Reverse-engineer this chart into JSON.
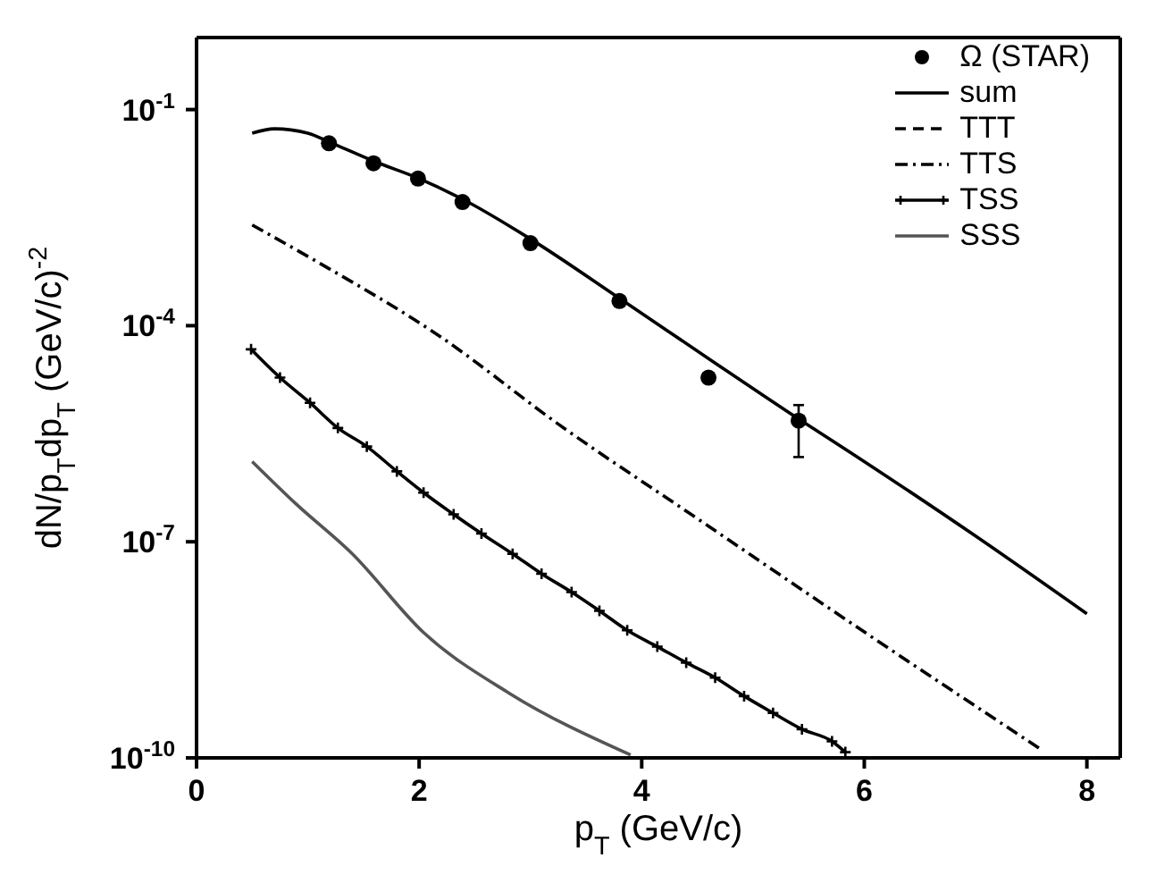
{
  "chart_data": {
    "type": "line",
    "xlabel": "p$_{T}$ (GeV/c)",
    "ylabel": "dN/p$_{T}$dp$_{T}$ (GeV/c)$^{-2}$",
    "log": "y",
    "xlim": [
      0,
      8.3
    ],
    "xticks": [
      0,
      2,
      4,
      6,
      8
    ],
    "ylim": [
      1e-10,
      1
    ],
    "yticks": [
      {
        "value": 0.1,
        "label": "10$^{-1}$"
      },
      {
        "value": 0.0001,
        "label": "10$^{-4}$"
      },
      {
        "value": 1e-07,
        "label": "10$^{-7}$"
      },
      {
        "value": 1e-10,
        "label": "10$^{-10}$"
      }
    ],
    "legend": "top right",
    "series": [
      {
        "name": "Ω (STAR)",
        "type": "scatter",
        "marker": "circle",
        "color": "#000000",
        "x": [
          1.19,
          1.59,
          1.99,
          2.39,
          3.0,
          3.8,
          4.6,
          5.41
        ],
        "values": [
          0.034,
          0.018,
          0.011,
          0.0052,
          0.0014,
          0.00022,
          1.9e-05,
          4.8e-06
        ],
        "errors": [
          null,
          null,
          null,
          null,
          null,
          null,
          null,
          [
            1.5e-06,
            7.9e-06
          ]
        ]
      },
      {
        "name": "sum",
        "line_style": "solid",
        "marker": "none",
        "color": "#000000",
        "x": [
          0.5,
          0.7,
          1.0,
          1.2,
          1.6,
          2.0,
          2.4,
          3.0,
          3.8,
          4.6,
          5.4,
          6.0,
          7.0,
          8.0
        ],
        "values": [
          0.047,
          0.054,
          0.047,
          0.035,
          0.019,
          0.011,
          0.0056,
          0.0016,
          0.00024,
          3.5e-05,
          5.2e-06,
          1.3e-06,
          1.2e-07,
          1e-08
        ]
      },
      {
        "name": "TTT",
        "line_style": "dashed",
        "marker": "none",
        "color": "#000000",
        "values": [
          null,
          null
        ]
      },
      {
        "name": "TTS",
        "line_style": "dashdot",
        "marker": "none",
        "color": "#000000",
        "x": [
          0.5,
          1.06,
          2.17,
          3.26,
          4.5,
          6.0,
          7.59
        ],
        "values": [
          0.0025,
          0.00081,
          7.4e-05,
          4.2e-06,
          2.1e-07,
          5.6e-09,
          1.3e-10
        ]
      },
      {
        "name": "TSS",
        "line_style": "solid",
        "marker": "cross",
        "color": "#000000",
        "x": [
          0.49,
          0.75,
          1.02,
          1.27,
          1.53,
          1.8,
          2.04,
          2.31,
          2.56,
          2.84,
          3.1,
          3.37,
          3.62,
          3.87,
          4.14,
          4.4,
          4.66,
          4.92,
          5.18,
          5.44,
          5.71,
          5.83
        ],
        "values": [
          4.7e-05,
          1.9e-05,
          8.5e-06,
          3.8e-06,
          2.1e-06,
          9.5e-07,
          4.8e-07,
          2.4e-07,
          1.3e-07,
          6.8e-08,
          3.6e-08,
          2e-08,
          1.1e-08,
          5.9e-09,
          3.5e-09,
          2.1e-09,
          1.3e-09,
          7.2e-10,
          4.2e-10,
          2.5e-10,
          1.7e-10,
          1.2e-10
        ]
      },
      {
        "name": "SSS",
        "line_style": "solid",
        "marker": "none",
        "color": "#555555",
        "x": [
          0.5,
          0.89,
          1.4,
          2.04,
          2.81,
          3.9
        ],
        "values": [
          1.3e-06,
          3.4e-07,
          6.8e-08,
          5.5e-09,
          7.9e-10,
          1.1e-10
        ]
      }
    ]
  }
}
